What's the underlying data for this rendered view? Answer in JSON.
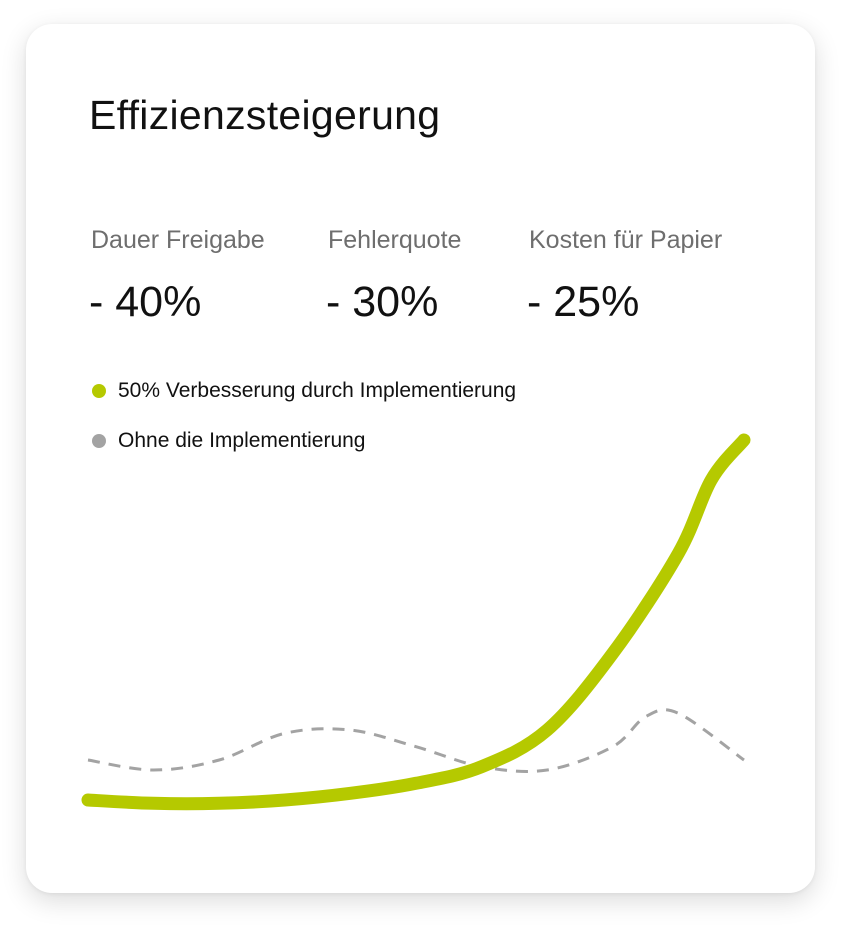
{
  "card": {
    "title": "Effizienzsteigerung",
    "stats": [
      {
        "label": "Dauer Freigabe",
        "value": "- 40%"
      },
      {
        "label": "Fehlerquote",
        "value": "- 30%"
      },
      {
        "label": "Kosten für Papier",
        "value": "- 25%"
      }
    ]
  },
  "colors": {
    "accent": "#b5c900",
    "baseline": "#a3a3a3",
    "text": "#111111",
    "muted": "#6e6e6e"
  },
  "chart_data": {
    "type": "line",
    "title": "",
    "xlabel": "",
    "ylabel": "",
    "grid": false,
    "legend_placement": "top-left",
    "series": [
      {
        "name": "50% Verbesserung durch Implementierung",
        "color": "#b5c900",
        "style": "solid",
        "points": [
          [
            0,
            0.0
          ],
          [
            0.1,
            -0.05
          ],
          [
            0.2,
            -0.05
          ],
          [
            0.3,
            0.0
          ],
          [
            0.4,
            0.1
          ],
          [
            0.5,
            0.25
          ],
          [
            0.6,
            0.5
          ],
          [
            0.7,
            1.05
          ],
          [
            0.8,
            2.2
          ],
          [
            0.9,
            3.7
          ],
          [
            0.95,
            4.8
          ],
          [
            1.0,
            5.4
          ]
        ]
      },
      {
        "name": "Ohne die Implementierung",
        "color": "#a3a3a3",
        "style": "dashed",
        "points": [
          [
            0,
            0.6
          ],
          [
            0.1,
            0.45
          ],
          [
            0.2,
            0.6
          ],
          [
            0.3,
            1.0
          ],
          [
            0.4,
            1.05
          ],
          [
            0.5,
            0.8
          ],
          [
            0.6,
            0.5
          ],
          [
            0.7,
            0.45
          ],
          [
            0.8,
            0.8
          ],
          [
            0.85,
            1.25
          ],
          [
            0.9,
            1.3
          ],
          [
            1.0,
            0.6
          ]
        ]
      }
    ]
  }
}
